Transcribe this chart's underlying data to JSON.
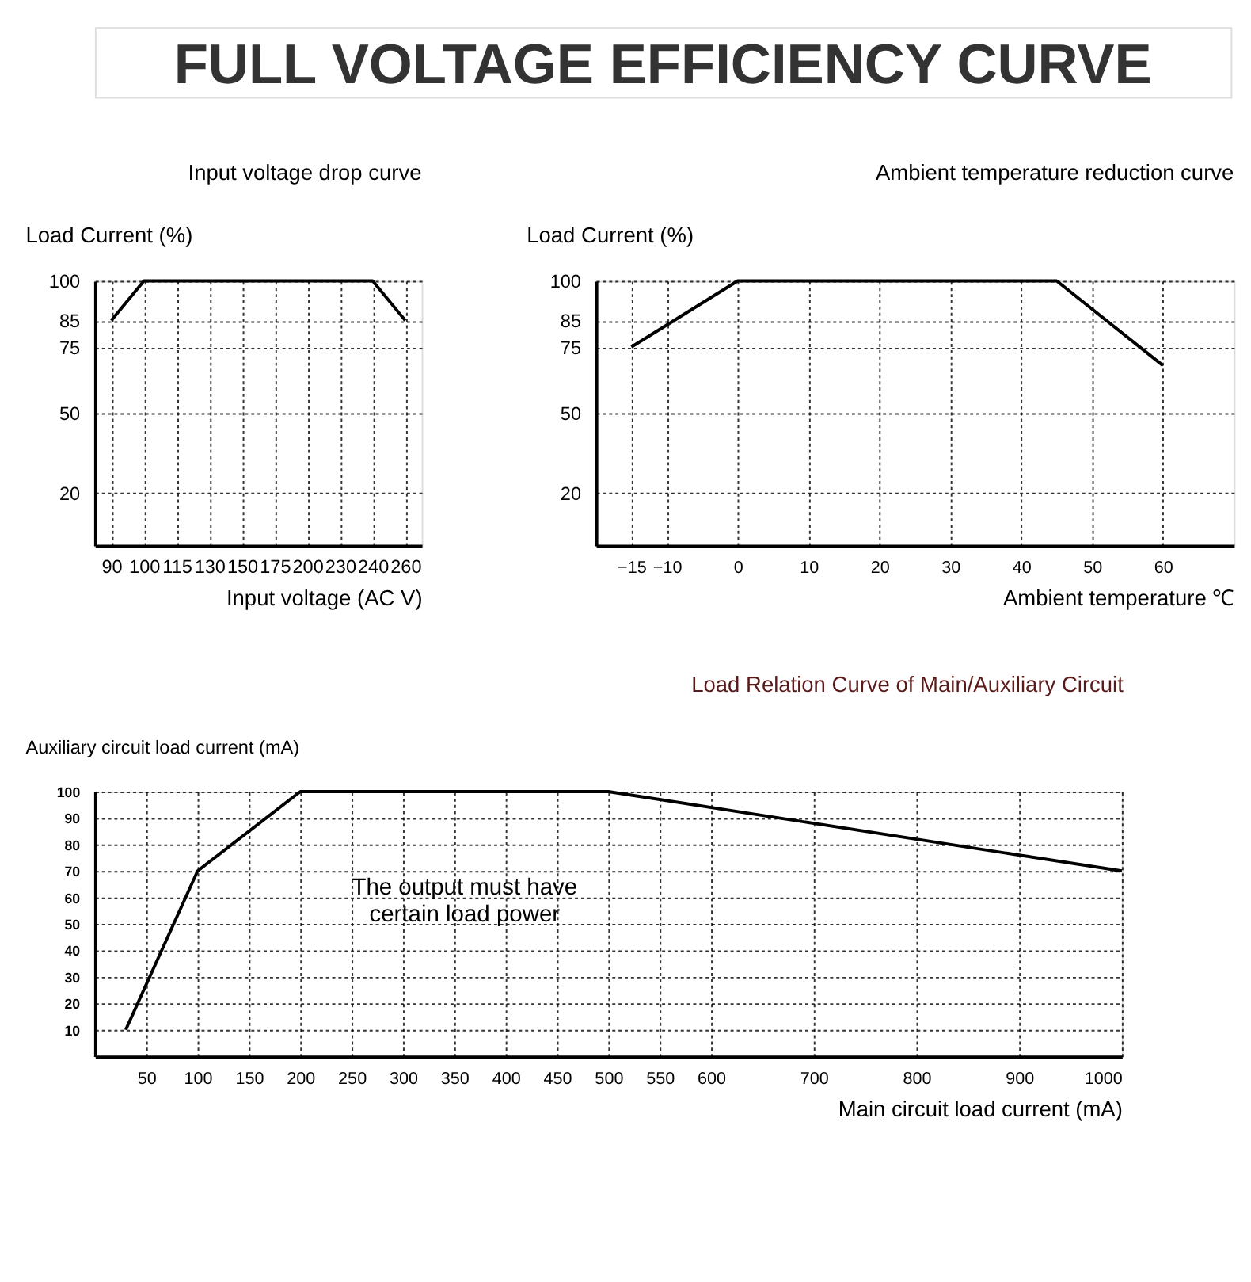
{
  "chart_data": [
    {
      "type": "other",
      "title": "FULL VOLTAGE EFFICIENCY CURVE"
    },
    {
      "type": "line",
      "title": "Input voltage drop curve",
      "xlabel": "Input voltage (AC V)",
      "ylabel": "Load Current (%)",
      "categories": [
        "90",
        "100",
        "115",
        "130",
        "150",
        "175",
        "200",
        "230",
        "240",
        "260"
      ],
      "values": [
        85,
        100,
        100,
        100,
        100,
        100,
        100,
        100,
        100,
        85
      ],
      "color": "#000000",
      "ylim": [
        0,
        100
      ],
      "yticks": [
        20,
        50,
        75,
        85,
        100
      ],
      "grid": true,
      "marker": "none",
      "line_style": "solid"
    },
    {
      "type": "line",
      "title": "Ambient temperature reduction curve",
      "xlabel": "Ambient temperature ℃",
      "ylabel": "Load Current (%)",
      "x": [
        -15,
        0,
        45,
        60
      ],
      "values": [
        75,
        100,
        100,
        68
      ],
      "color": "#000000",
      "xlim": [
        -20,
        70
      ],
      "xticks": [
        -15,
        -10,
        0,
        10,
        20,
        30,
        40,
        50,
        60
      ],
      "ylim": [
        0,
        100
      ],
      "yticks": [
        20,
        50,
        75,
        85,
        100
      ],
      "grid": true,
      "marker": "none",
      "line_style": "solid"
    },
    {
      "type": "line",
      "title": "Load Relation Curve of Main/Auxiliary Circuit",
      "xlabel": "Main circuit load current (mA)",
      "ylabel": "Auxiliary circuit load current (mA)",
      "x": [
        30,
        100,
        200,
        500,
        1000
      ],
      "values": [
        10,
        70,
        100,
        100,
        70
      ],
      "color": "#000000",
      "xlim": [
        0,
        1000
      ],
      "xticks": [
        50,
        100,
        150,
        200,
        250,
        300,
        350,
        400,
        450,
        500,
        550,
        600,
        700,
        800,
        900,
        1000
      ],
      "ylim": [
        0,
        100
      ],
      "yticks": [
        10,
        20,
        30,
        40,
        50,
        60,
        70,
        80,
        90,
        100
      ],
      "grid": true,
      "marker": "none",
      "line_style": "solid",
      "annotations": [
        "The output must have\ncertain load power"
      ]
    }
  ]
}
